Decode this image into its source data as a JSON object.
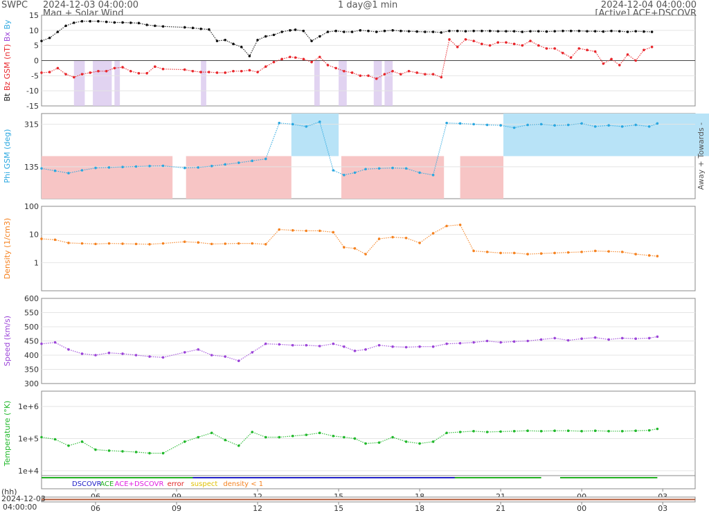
{
  "header": {
    "agency": "SWPC",
    "start_time": "2024-12-03 04:00:00",
    "subtitle": "Mag + Solar Wind",
    "span": "1 day@1 min",
    "end_time": "2024-12-04 04:00:00",
    "source": "[Active] ACE+DSCOVR"
  },
  "colors": {
    "bt": "#111111",
    "bz": "#e8262b",
    "phi": "#2aa7e0",
    "away_fill": "#f7c5c5",
    "towards_fill": "#b8e3f7",
    "density": "#f58220",
    "speed": "#9b44d8",
    "temperature": "#20b82a",
    "dscovr": "#2020c8",
    "ace": "#20b020",
    "acedscovr": "#e020e0",
    "error": "#e02020",
    "suspect": "#e0c000",
    "density_lt1": "#f58220",
    "shade": "#d9c8ee"
  },
  "chart_data": [
    {
      "type": "scatter",
      "name": "mag",
      "ylabel_parts": [
        {
          "text": "Bt",
          "color": "#111111"
        },
        {
          "text": "Bz GSM (nT)",
          "color": "#e8262b"
        },
        {
          "text": "Bx",
          "color": "#9b44d8"
        },
        {
          "text": "By",
          "color": "#2aa7e0"
        }
      ],
      "ylim": [
        -15,
        15
      ],
      "yticks": [
        "15",
        "10",
        "5",
        "0",
        "-5",
        "-10",
        "-15"
      ],
      "x_unit": "hours since 2024-12-03 04:00",
      "series": [
        {
          "name": "Bt",
          "color": "#111111",
          "x": [
            0.0,
            0.3,
            0.6,
            0.9,
            1.2,
            1.5,
            1.8,
            2.1,
            2.4,
            2.7,
            3.0,
            3.3,
            3.6,
            3.9,
            4.2,
            4.5,
            5.3,
            5.6,
            5.9,
            6.2,
            6.5,
            6.8,
            7.1,
            7.4,
            7.7,
            8.0,
            8.3,
            8.6,
            8.9,
            9.2,
            9.4,
            9.7,
            10.0,
            10.3,
            10.6,
            10.9,
            11.2,
            11.5,
            11.8,
            12.1,
            12.4,
            12.7,
            13.0,
            13.3,
            13.6,
            13.9,
            14.2,
            14.5,
            14.8,
            15.1,
            15.4,
            15.7,
            16.0,
            16.3,
            16.6,
            16.9,
            17.2,
            17.5,
            17.8,
            18.1,
            18.4,
            18.7,
            19.0,
            19.3,
            19.6,
            19.9,
            20.2,
            20.5,
            20.8,
            21.1,
            21.4,
            21.7,
            22.0,
            22.3,
            22.6
          ],
          "y": [
            6.5,
            7.5,
            9.5,
            11.5,
            12.5,
            13,
            13,
            13,
            12.8,
            12.6,
            12.6,
            12.5,
            12.4,
            11.8,
            11.5,
            11.3,
            11.0,
            10.8,
            10.5,
            10.3,
            6.5,
            6.8,
            5.5,
            4.5,
            1.5,
            6.8,
            8.0,
            8.5,
            9.5,
            10.0,
            10.2,
            9.8,
            6.5,
            8.0,
            9.5,
            9.8,
            9.5,
            9.5,
            10.0,
            9.8,
            9.5,
            9.8,
            10.0,
            9.8,
            9.7,
            9.6,
            9.5,
            9.5,
            9.3,
            9.8,
            9.8,
            9.7,
            9.8,
            9.8,
            9.8,
            9.7,
            9.7,
            9.7,
            9.5,
            9.7,
            9.7,
            9.6,
            9.7,
            9.8,
            9.8,
            9.8,
            9.7,
            9.7,
            9.6,
            9.8,
            9.7,
            9.5,
            9.7,
            9.6,
            9.5
          ]
        },
        {
          "name": "Bz GSM",
          "color": "#e8262b",
          "x": [
            0.0,
            0.3,
            0.6,
            0.9,
            1.2,
            1.5,
            1.8,
            2.1,
            2.4,
            2.7,
            3.0,
            3.3,
            3.6,
            3.9,
            4.2,
            4.5,
            5.3,
            5.6,
            5.9,
            6.2,
            6.5,
            6.8,
            7.1,
            7.4,
            7.7,
            8.0,
            8.3,
            8.6,
            8.9,
            9.2,
            9.4,
            9.7,
            10.0,
            10.3,
            10.6,
            10.9,
            11.2,
            11.5,
            11.8,
            12.1,
            12.4,
            12.7,
            13.0,
            13.3,
            13.6,
            13.9,
            14.2,
            14.5,
            14.8,
            15.1,
            15.4,
            15.7,
            16.0,
            16.3,
            16.6,
            16.9,
            17.2,
            17.5,
            17.8,
            18.1,
            18.4,
            18.7,
            19.0,
            19.3,
            19.6,
            19.9,
            20.2,
            20.5,
            20.8,
            21.1,
            21.4,
            21.7,
            22.0,
            22.3,
            22.6
          ],
          "y": [
            -4,
            -3.8,
            -2.5,
            -4.5,
            -5.5,
            -4.5,
            -4.0,
            -3.5,
            -3.5,
            -2.5,
            -2.2,
            -3.5,
            -4.2,
            -4.2,
            -2.0,
            -2.8,
            -3.0,
            -3.5,
            -3.8,
            -3.8,
            -4.0,
            -4.0,
            -3.5,
            -3.5,
            -3.2,
            -3.8,
            -2.0,
            -0.5,
            0.5,
            1.2,
            1.0,
            0.5,
            -0.5,
            1.2,
            -1.5,
            -2.5,
            -3.5,
            -4.0,
            -5.0,
            -5.0,
            -6.0,
            -4.5,
            -3.5,
            -4.5,
            -3.5,
            -4.0,
            -4.5,
            -4.5,
            -5.5,
            7.0,
            4.5,
            7.0,
            6.5,
            5.5,
            5.0,
            6.0,
            6.0,
            5.5,
            5.0,
            6.5,
            5.0,
            4.0,
            4.0,
            2.5,
            1.0,
            4.0,
            3.5,
            3.0,
            -1.0,
            0.5,
            -1.5,
            2.0,
            0.0,
            3.5,
            4.5
          ]
        }
      ],
      "shaded_bands_hours": [
        [
          1.2,
          1.6
        ],
        [
          1.9,
          2.6
        ],
        [
          2.7,
          2.9
        ],
        [
          5.9,
          6.1
        ],
        [
          10.1,
          10.3
        ],
        [
          11.0,
          11.3
        ],
        [
          12.3,
          12.6
        ],
        [
          12.7,
          13.0
        ]
      ]
    },
    {
      "type": "scatter",
      "name": "phi",
      "ylabel": "Phi GSM (deg)",
      "right_label": "Away +  Towards -",
      "ylim": [
        0,
        360
      ],
      "yticks": [
        "315",
        "135"
      ],
      "series": [
        {
          "name": "Phi GSM",
          "color": "#2aa7e0",
          "x": [
            0.0,
            0.5,
            1.0,
            1.5,
            2.0,
            2.5,
            3.0,
            3.5,
            4.0,
            4.5,
            5.3,
            5.8,
            6.3,
            6.8,
            7.3,
            7.8,
            8.3,
            8.8,
            9.3,
            9.8,
            10.3,
            10.8,
            11.2,
            11.6,
            12.0,
            12.5,
            13.0,
            13.5,
            14.0,
            14.5,
            15.0,
            15.5,
            16.0,
            16.5,
            17.0,
            17.5,
            18.0,
            18.5,
            19.0,
            19.5,
            20.0,
            20.5,
            21.0,
            21.5,
            22.0,
            22.5,
            22.8
          ],
          "y": [
            128,
            118,
            108,
            120,
            130,
            132,
            134,
            136,
            138,
            139,
            130,
            132,
            138,
            145,
            152,
            160,
            168,
            320,
            315,
            305,
            325,
            120,
            100,
            110,
            125,
            128,
            130,
            128,
            110,
            100,
            320,
            318,
            315,
            312,
            310,
            300,
            312,
            315,
            310,
            312,
            318,
            305,
            310,
            305,
            312,
            305,
            318
          ]
        }
      ],
      "away_bands_hours": [
        [
          0.0,
          4.85
        ],
        [
          5.35,
          9.25
        ],
        [
          11.1,
          14.9
        ],
        [
          15.5,
          17.1
        ]
      ],
      "towards_bands_hours": [
        [
          9.25,
          11.0
        ],
        [
          17.1,
          28.1
        ]
      ]
    },
    {
      "type": "scatter",
      "name": "density",
      "ylabel": "Density (1/cm3)",
      "yscale": "log",
      "ylim": [
        0.1,
        100
      ],
      "yticks": [
        "100",
        "10",
        "1"
      ],
      "series": [
        {
          "name": "Density",
          "color": "#f58220",
          "x": [
            0.0,
            0.5,
            1.0,
            1.5,
            2.0,
            2.5,
            3.0,
            3.5,
            4.0,
            4.5,
            5.3,
            5.8,
            6.3,
            6.8,
            7.3,
            7.8,
            8.3,
            8.8,
            9.3,
            9.8,
            10.3,
            10.8,
            11.2,
            11.6,
            12.0,
            12.5,
            13.0,
            13.5,
            14.0,
            14.5,
            15.0,
            15.5,
            16.0,
            16.5,
            17.0,
            17.5,
            18.0,
            18.5,
            19.0,
            19.5,
            20.0,
            20.5,
            21.0,
            21.5,
            22.0,
            22.5,
            22.8
          ],
          "y": [
            7,
            6.5,
            5,
            4.8,
            4.6,
            4.8,
            4.7,
            4.6,
            4.5,
            4.8,
            5.5,
            5.2,
            4.6,
            4.7,
            4.8,
            4.8,
            4.5,
            15,
            14,
            13.5,
            13.5,
            12,
            3.5,
            3.2,
            2,
            7,
            8,
            7.5,
            5,
            11,
            20,
            22,
            2.6,
            2.4,
            2.2,
            2.2,
            2.0,
            2.1,
            2.2,
            2.3,
            2.4,
            2.6,
            2.5,
            2.4,
            2.0,
            1.8,
            1.7
          ]
        }
      ]
    },
    {
      "type": "scatter",
      "name": "speed",
      "ylabel": "Speed (km/s)",
      "ylim": [
        300,
        600
      ],
      "yticks": [
        "600",
        "550",
        "500",
        "450",
        "400",
        "350",
        "300"
      ],
      "series": [
        {
          "name": "Speed",
          "color": "#9b44d8",
          "x": [
            0.0,
            0.5,
            1.0,
            1.5,
            2.0,
            2.5,
            3.0,
            3.5,
            4.0,
            4.5,
            5.3,
            5.8,
            6.3,
            6.8,
            7.3,
            7.8,
            8.3,
            8.8,
            9.3,
            9.8,
            10.3,
            10.8,
            11.2,
            11.6,
            12.0,
            12.5,
            13.0,
            13.5,
            14.0,
            14.5,
            15.0,
            15.5,
            16.0,
            16.5,
            17.0,
            17.5,
            18.0,
            18.5,
            19.0,
            19.5,
            20.0,
            20.5,
            21.0,
            21.5,
            22.0,
            22.5,
            22.8
          ],
          "y": [
            440,
            445,
            420,
            405,
            400,
            408,
            405,
            400,
            395,
            392,
            410,
            420,
            400,
            395,
            380,
            410,
            440,
            438,
            435,
            435,
            432,
            440,
            430,
            415,
            420,
            435,
            430,
            428,
            430,
            430,
            440,
            442,
            445,
            450,
            445,
            448,
            450,
            455,
            460,
            452,
            458,
            462,
            455,
            460,
            458,
            460,
            465
          ]
        }
      ]
    },
    {
      "type": "scatter",
      "name": "temperature",
      "ylabel": "Temperature (°K)",
      "yscale": "log",
      "ylim": [
        7000,
        3000000
      ],
      "yticks": [
        "1e+6",
        "1e+5",
        "1e+4"
      ],
      "series": [
        {
          "name": "Temperature",
          "color": "#20b82a",
          "x": [
            0.0,
            0.5,
            1.0,
            1.5,
            2.0,
            2.5,
            3.0,
            3.5,
            4.0,
            4.5,
            5.3,
            5.8,
            6.3,
            6.8,
            7.3,
            7.8,
            8.3,
            8.8,
            9.3,
            9.8,
            10.3,
            10.8,
            11.2,
            11.6,
            12.0,
            12.5,
            13.0,
            13.5,
            14.0,
            14.5,
            15.0,
            15.5,
            16.0,
            16.5,
            17.0,
            17.5,
            18.0,
            18.5,
            19.0,
            19.5,
            20.0,
            20.5,
            21.0,
            21.5,
            22.0,
            22.5,
            22.8
          ],
          "y": [
            110000,
            95000,
            60000,
            80000,
            45000,
            42000,
            40000,
            38000,
            35000,
            35000,
            80000,
            110000,
            150000,
            90000,
            60000,
            160000,
            110000,
            110000,
            120000,
            130000,
            150000,
            120000,
            110000,
            100000,
            70000,
            75000,
            110000,
            80000,
            70000,
            80000,
            150000,
            160000,
            170000,
            160000,
            165000,
            170000,
            175000,
            170000,
            175000,
            175000,
            170000,
            175000,
            170000,
            170000,
            175000,
            180000,
            200000
          ]
        }
      ]
    }
  ],
  "status_legend": {
    "items": [
      {
        "label": "DSCOVR",
        "color": "#2020c8"
      },
      {
        "label": "ACE",
        "color": "#20b020"
      },
      {
        "label": "ACE+DSCOVR",
        "color": "#e020e0"
      },
      {
        "label": "error",
        "color": "#e02020"
      },
      {
        "label": "suspect",
        "color": "#e0c000"
      },
      {
        "label": "density < 1",
        "color": "#f58220"
      }
    ]
  },
  "x_axis": {
    "unit_label": "(hh)",
    "ticks": [
      "06",
      "09",
      "12",
      "15",
      "18",
      "21",
      "00",
      "03"
    ],
    "bottom_label_date": "2024-12-03",
    "bottom_label_time": "04:00:00"
  }
}
